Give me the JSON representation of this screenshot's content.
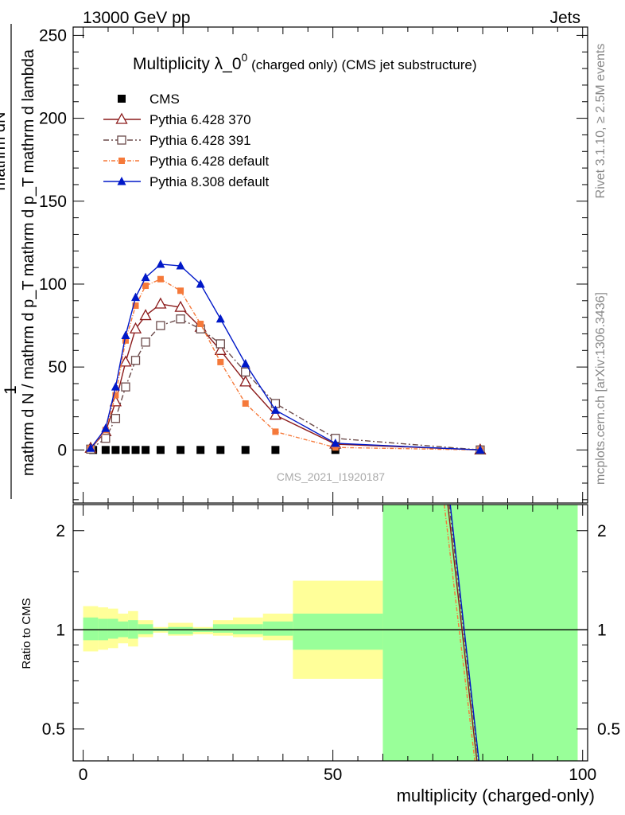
{
  "header": {
    "left": "13000 GeV pp",
    "right": "Jets"
  },
  "side_text": {
    "rivet": "Rivet 3.1.10, ≥ 2.5M events",
    "mcplots": "mcplots.cern.ch [arXiv:1306.3436]"
  },
  "watermark": "CMS_2021_I1920187",
  "title": {
    "main": "Multiplicity λ_0",
    "sup": "0",
    "suffix": " (charged only) (CMS jet substructure)"
  },
  "colors": {
    "cms": "#000000",
    "p370": "#8b1a1a",
    "p391": "#6b4a4a",
    "p6def": "#f5793a",
    "p8def": "#0018c8",
    "band_yellow": "#ffff99",
    "band_green": "#99ff99"
  },
  "chart_data": [
    {
      "type": "line",
      "ylabel_num": "1",
      "ylabel_den": "mathrm d N / mathrm d p_T mathrm d p_T mathrm d lambda",
      "ylabel_top": "mathrm dN",
      "xlim": [
        -2,
        101
      ],
      "ylim": [
        -32,
        255
      ],
      "yticks": [
        0,
        50,
        100,
        150,
        200,
        250
      ],
      "ytick_labels": [
        "0",
        "50",
        "100",
        "150",
        "200",
        "250"
      ],
      "series": [
        {
          "name": "CMS",
          "key": "cms",
          "marker": "square-filled",
          "line": "none",
          "x": [
            2,
            4.5,
            6.5,
            8.5,
            10.5,
            12.5,
            15.5,
            19.5,
            23.5,
            27.5,
            32.5,
            38.5,
            50.5,
            79.5
          ],
          "y": [
            0,
            0,
            0,
            0,
            0,
            0,
            0,
            0,
            0,
            0,
            0,
            0,
            0,
            0
          ]
        },
        {
          "name": "Pythia 6.428 370",
          "key": "p370",
          "marker": "triangle-open",
          "line": "solid",
          "x": [
            1.5,
            4.5,
            6.5,
            8.5,
            10.5,
            12.5,
            15.5,
            19.5,
            23.5,
            27.5,
            32.5,
            38.5,
            50.5,
            79.5
          ],
          "y": [
            1,
            11,
            29,
            53,
            73,
            81,
            88,
            86,
            74,
            60,
            41,
            21,
            3.5,
            0
          ]
        },
        {
          "name": "Pythia 6.428 391",
          "key": "p391",
          "marker": "square-open",
          "line": "dashdot",
          "x": [
            1.5,
            4.5,
            6.5,
            8.5,
            10.5,
            12.5,
            15.5,
            19.5,
            23.5,
            27.5,
            32.5,
            38.5,
            50.5,
            79.5
          ],
          "y": [
            0.5,
            7,
            19,
            38,
            54,
            65,
            75,
            79,
            73,
            64,
            47,
            28,
            7,
            0
          ]
        },
        {
          "name": "Pythia 6.428 default",
          "key": "p6def",
          "marker": "square-filled-small",
          "line": "dashdot-dense",
          "x": [
            1.5,
            4.5,
            6.5,
            8.5,
            10.5,
            12.5,
            15.5,
            19.5,
            23.5,
            27.5,
            32.5,
            38.5,
            50.5,
            79.5
          ],
          "y": [
            1,
            12,
            33,
            66,
            87,
            99,
            103,
            96,
            76,
            53,
            28,
            11,
            1.5,
            0
          ]
        },
        {
          "name": "Pythia 8.308 default",
          "key": "p8def",
          "marker": "triangle-filled",
          "line": "solid",
          "x": [
            1.5,
            4.5,
            6.5,
            8.5,
            10.5,
            12.5,
            15.5,
            19.5,
            23.5,
            27.5,
            32.5,
            38.5,
            50.5,
            79.5
          ],
          "y": [
            1,
            13,
            38,
            69,
            92,
            104,
            112,
            111,
            100,
            79,
            52,
            24,
            4,
            0
          ]
        }
      ]
    },
    {
      "type": "area",
      "ylabel": "Ratio to CMS",
      "xlabel": "multiplicity (charged-only)",
      "xlim": [
        -2,
        101
      ],
      "ylim": [
        0.4,
        2.4
      ],
      "yscale": "log",
      "xticks": [
        0,
        50,
        100
      ],
      "xtick_labels": [
        "0",
        "50",
        "100"
      ],
      "yticks": [
        0.5,
        1,
        2
      ],
      "ytick_labels": [
        "0.5",
        "1",
        "2"
      ],
      "bins": [
        {
          "lo": 0,
          "hi": 3,
          "yellow": [
            0.86,
            1.18
          ],
          "green": [
            0.93,
            1.09
          ]
        },
        {
          "lo": 3,
          "hi": 5,
          "yellow": [
            0.87,
            1.17
          ],
          "green": [
            0.93,
            1.08
          ]
        },
        {
          "lo": 5,
          "hi": 7,
          "yellow": [
            0.88,
            1.16
          ],
          "green": [
            0.94,
            1.08
          ]
        },
        {
          "lo": 7,
          "hi": 9,
          "yellow": [
            0.91,
            1.12
          ],
          "green": [
            0.95,
            1.06
          ]
        },
        {
          "lo": 9,
          "hi": 11,
          "yellow": [
            0.89,
            1.14
          ],
          "green": [
            0.94,
            1.07
          ]
        },
        {
          "lo": 11,
          "hi": 14,
          "yellow": [
            0.95,
            1.07
          ],
          "green": [
            0.97,
            1.04
          ]
        },
        {
          "lo": 14,
          "hi": 17,
          "yellow": [
            0.98,
            1.02
          ],
          "green": [
            0.99,
            1.01
          ]
        },
        {
          "lo": 17,
          "hi": 22,
          "yellow": [
            0.96,
            1.05
          ],
          "green": [
            0.97,
            1.02
          ]
        },
        {
          "lo": 22,
          "hi": 26,
          "yellow": [
            0.97,
            1.02
          ],
          "green": [
            0.985,
            1.01
          ]
        },
        {
          "lo": 26,
          "hi": 30,
          "yellow": [
            0.96,
            1.07
          ],
          "green": [
            0.98,
            1.04
          ]
        },
        {
          "lo": 30,
          "hi": 36,
          "yellow": [
            0.95,
            1.09
          ],
          "green": [
            0.97,
            1.04
          ]
        },
        {
          "lo": 36,
          "hi": 42,
          "yellow": [
            0.93,
            1.12
          ],
          "green": [
            0.96,
            1.06
          ]
        },
        {
          "lo": 42,
          "hi": 60,
          "yellow": [
            0.71,
            1.41
          ],
          "green": [
            0.87,
            1.12
          ]
        },
        {
          "lo": 60,
          "hi": 99,
          "yellow": [
            0.1,
            3.0
          ],
          "green": [
            0.1,
            3.0
          ]
        }
      ],
      "ratio_lines": [
        {
          "key": "p370",
          "x": [
            73.0,
            79.0
          ],
          "y": [
            2.4,
            0.38
          ]
        },
        {
          "key": "p391",
          "x": [
            73.3,
            79.3
          ],
          "y": [
            2.4,
            0.38
          ]
        },
        {
          "key": "p6def",
          "x": [
            72.3,
            78.6
          ],
          "y": [
            2.4,
            0.38
          ]
        },
        {
          "key": "p8def",
          "x": [
            73.5,
            79.4
          ],
          "y": [
            2.4,
            0.38
          ]
        }
      ]
    }
  ]
}
